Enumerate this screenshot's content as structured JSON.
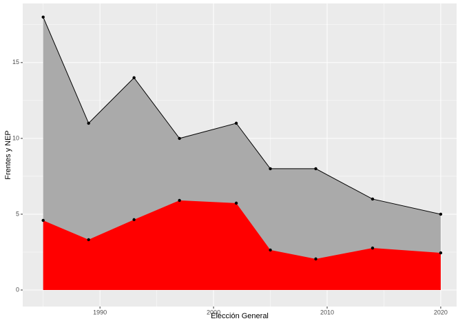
{
  "chart_data": {
    "type": "area",
    "x_label": "Elección General",
    "y_label": "Frentes y NEP",
    "x": [
      1985,
      1989,
      1993,
      1997,
      2002,
      2005,
      2009,
      2014,
      2020
    ],
    "series": [
      {
        "color": "#aaaaaa",
        "outline": "#000000",
        "values": [
          18,
          11,
          14,
          10,
          11,
          8,
          8,
          6,
          5
        ]
      },
      {
        "color": "#ff0000",
        "values": [
          4.59,
          3.32,
          4.64,
          5.91,
          5.73,
          2.64,
          2.05,
          2.77,
          2.45
        ]
      }
    ],
    "point_color": "#000000",
    "xlim": [
      1983.2,
      2021.4
    ],
    "xticks": [
      1990,
      2000,
      2010,
      2020
    ],
    "x_minor_ticks": [
      1985,
      1995,
      2005,
      2015
    ],
    "ylim": [
      -1.09,
      18.9
    ],
    "yticks": [
      0,
      5,
      10,
      15
    ],
    "y_minor_ticks": [
      2.5,
      7.5,
      12.5,
      17.5
    ],
    "grid": true
  }
}
